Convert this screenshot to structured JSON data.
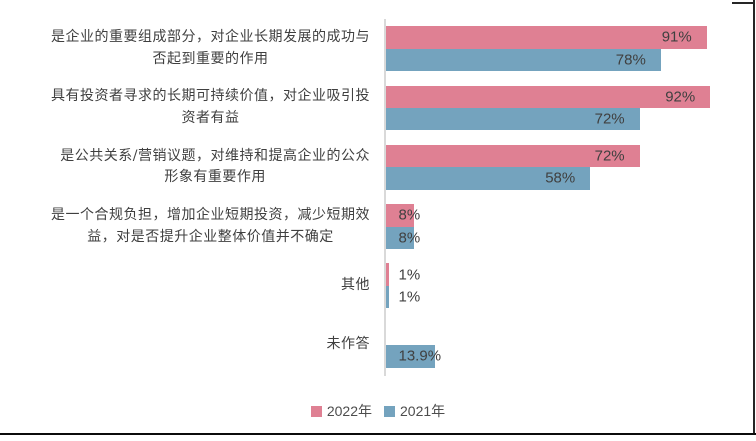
{
  "chart_data": {
    "type": "bar",
    "orientation": "horizontal",
    "title": "",
    "xlabel": "",
    "ylabel": "",
    "grid": false,
    "legend_position": "bottom",
    "xlim": [
      0,
      100
    ],
    "value_suffix": "%",
    "categories": [
      "是企业的重要组成部分，对企业长期发展的成功与\n否起到重要的作用",
      "具有投资者寻求的长期可持续价值，对企业吸引投\n资者有益",
      "是公共关系/营销议题，对维持和提高企业的公众\n形象有重要作用",
      "是一个合规负担，增加企业短期投资，减少短期效\n益，对是否提升企业整体价值并不确定",
      "其他",
      "未作答"
    ],
    "series": [
      {
        "name": "2022年",
        "color": "#DF8093",
        "values": [
          91,
          92,
          72,
          8,
          1,
          null
        ],
        "value_labels": [
          "91%",
          "92%",
          "72%",
          "8%",
          "1%",
          null
        ]
      },
      {
        "name": "2021年",
        "color": "#74A3BE",
        "values": [
          78,
          72,
          58,
          8,
          1,
          13.9
        ],
        "value_labels": [
          "78%",
          "72%",
          "58%",
          "8%",
          "1%",
          "13.9%"
        ]
      }
    ]
  },
  "styles": {
    "axis_color": "#D9D9D9",
    "category_text_color": "#3F3F3F",
    "value_text_color": "#404040"
  }
}
